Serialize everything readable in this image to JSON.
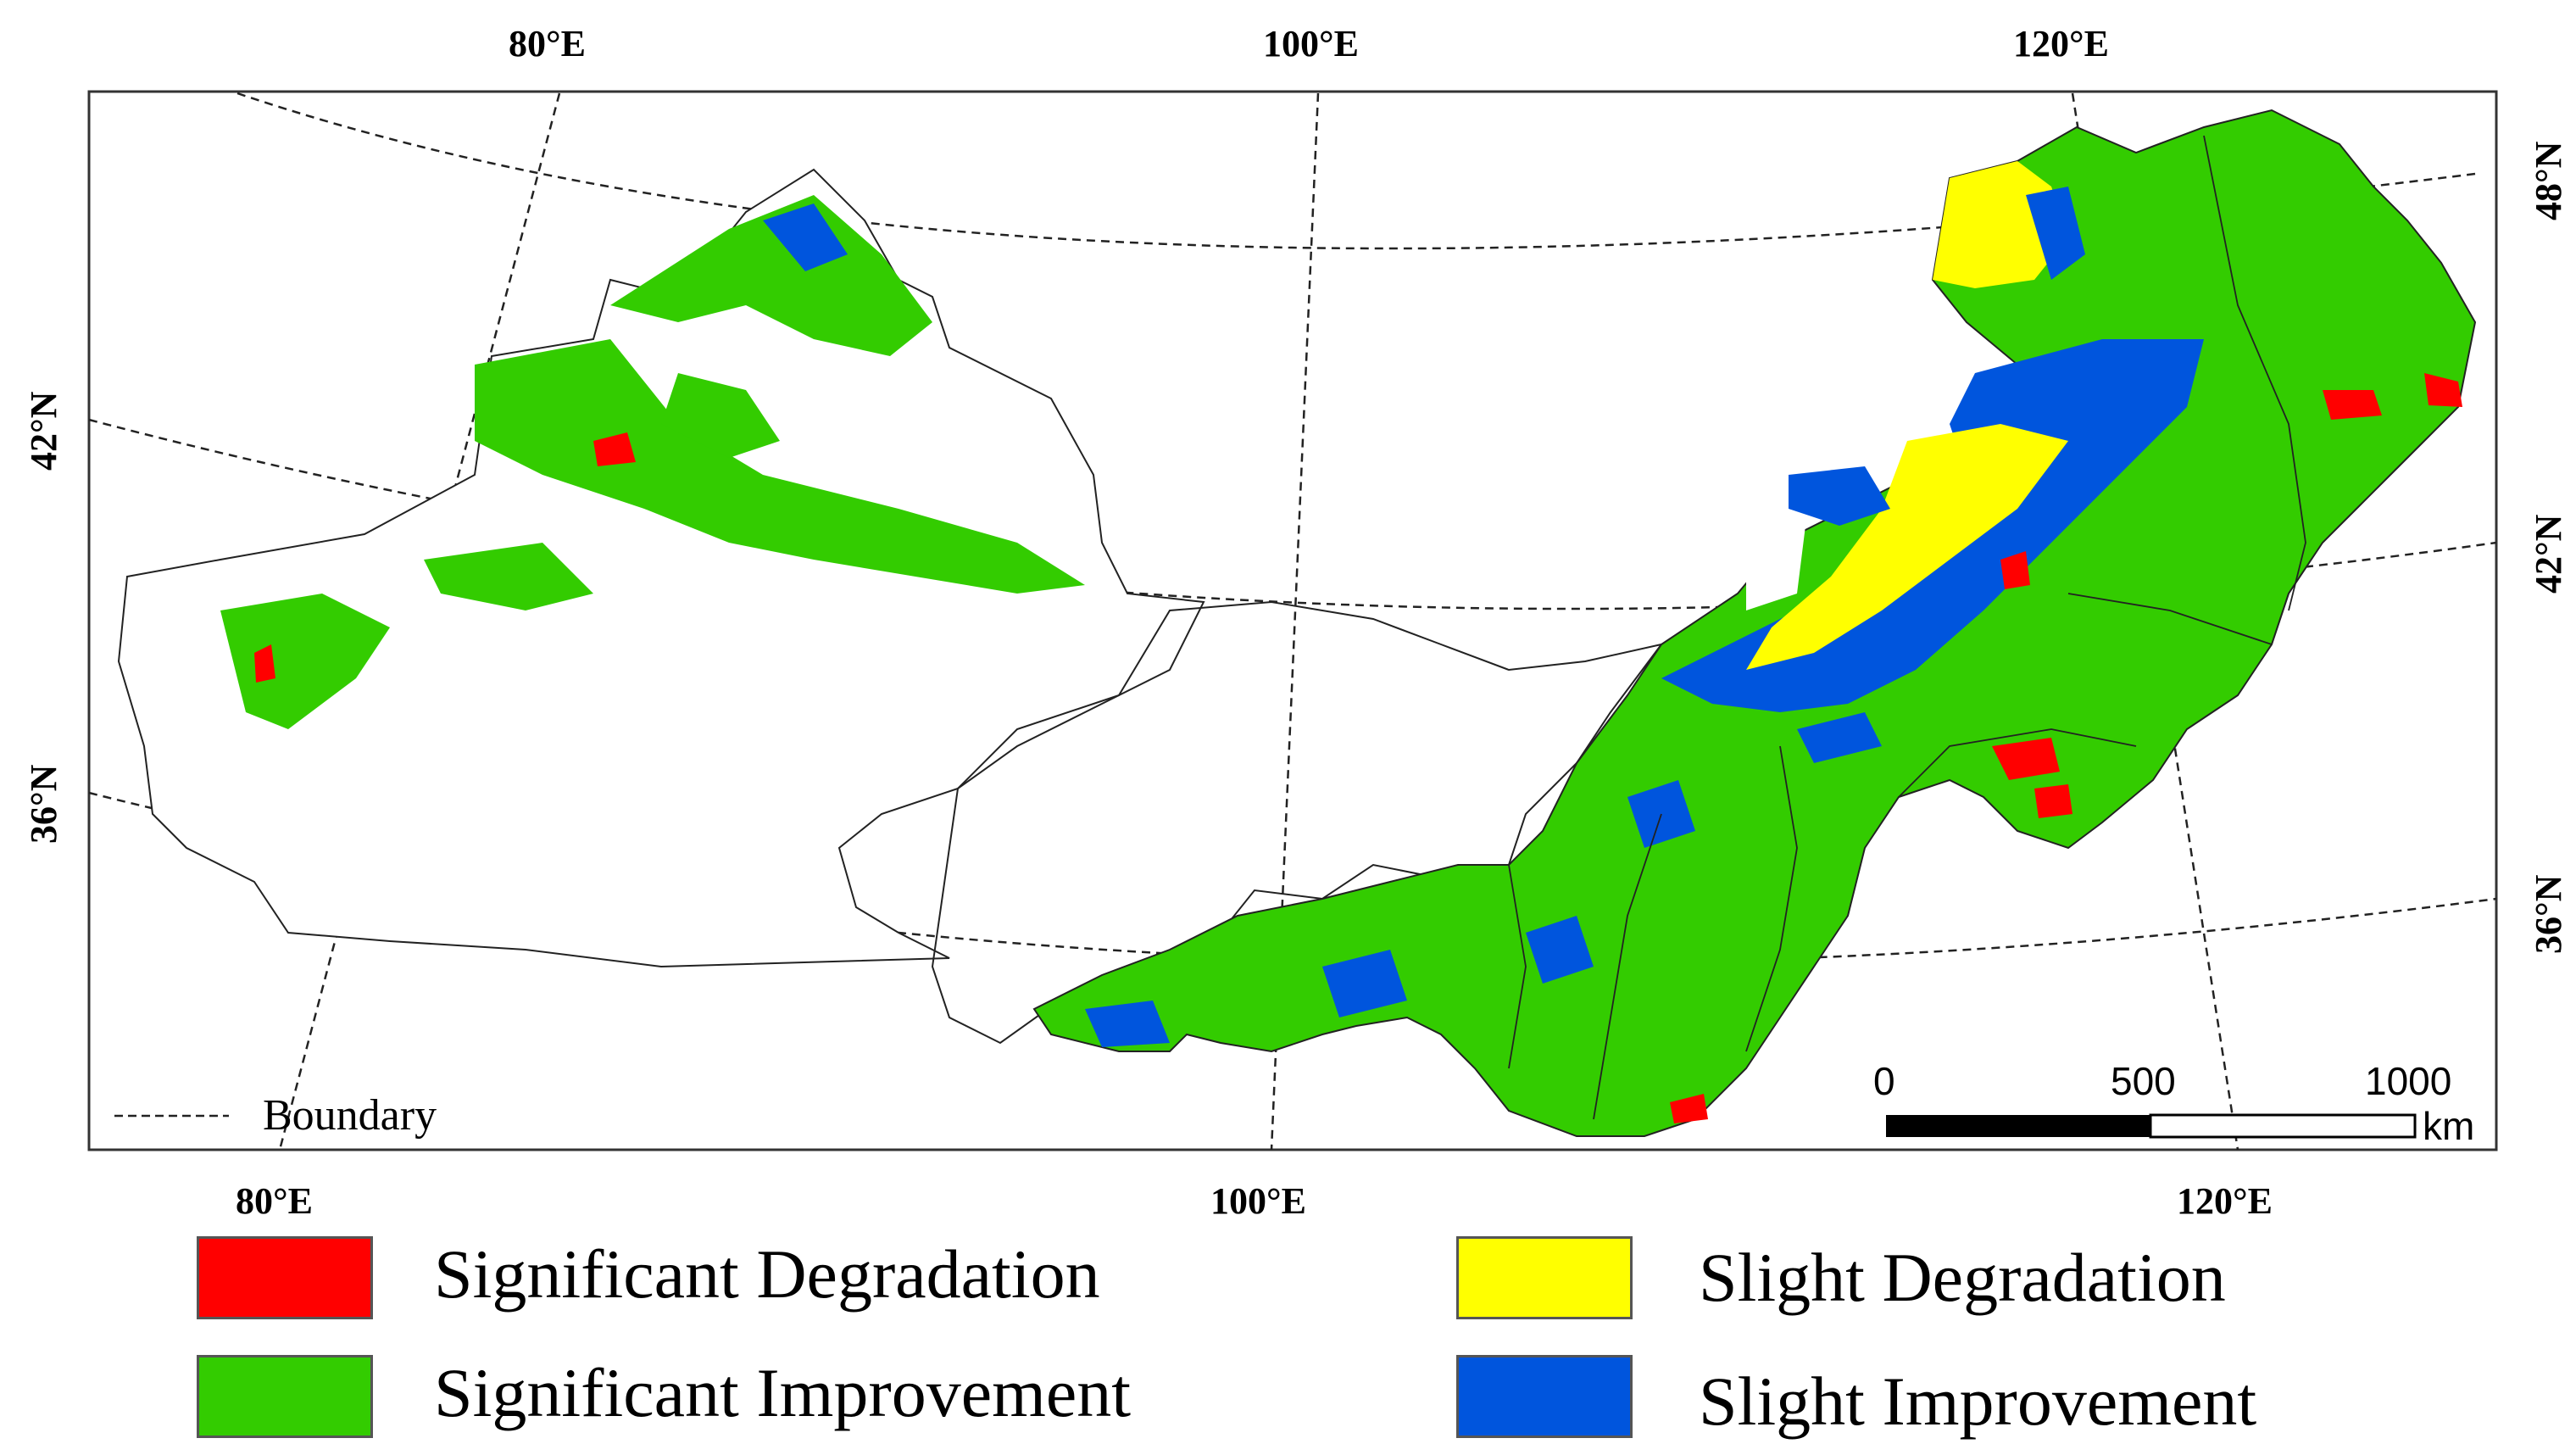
{
  "top_longitudes": [
    "80°E",
    "100°E",
    "120°E"
  ],
  "bottom_longitudes": [
    "80°E",
    "100°E",
    "120°E"
  ],
  "left_latitudes": [
    "42°N",
    "36°N"
  ],
  "right_latitudes": [
    "48°N",
    "42°N",
    "36°N"
  ],
  "scale_bar": {
    "ticks": [
      "0",
      "500",
      "1000"
    ],
    "unit": "km"
  },
  "boundary_label": "Boundary",
  "legend": [
    {
      "label": "Significant Degradation",
      "color": "#ff0000"
    },
    {
      "label": "Slight Degradation",
      "color": "#ffff00"
    },
    {
      "label": "Significant Improvement",
      "color": "#33cc00"
    },
    {
      "label": "Slight Improvement",
      "color": "#0055dd"
    }
  ]
}
